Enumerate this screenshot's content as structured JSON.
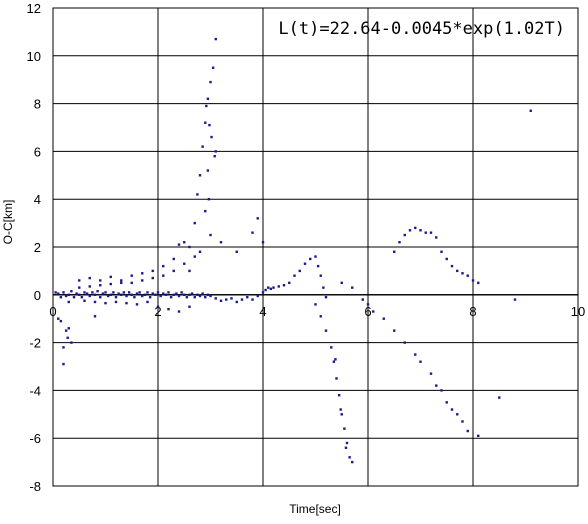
{
  "chart_data": {
    "type": "scatter",
    "title": "",
    "annotation": "L(t)=22.64-0.0045*exp(1.02T)",
    "xlabel": "Time[sec]",
    "ylabel": "O-C[km]",
    "xlim": [
      0,
      10
    ],
    "ylim": [
      -8,
      12
    ],
    "xticks": [
      0,
      2,
      4,
      6,
      8,
      10
    ],
    "yticks": [
      -8,
      -6,
      -4,
      -2,
      0,
      2,
      4,
      6,
      8,
      10,
      12
    ],
    "grid": true,
    "legend": "none",
    "marker_color": "#1a1a8c",
    "series": [
      {
        "points": [
          [
            0.05,
            0.1
          ],
          [
            0.1,
            0.05
          ],
          [
            0.15,
            -0.1
          ],
          [
            0.2,
            0.1
          ],
          [
            0.25,
            -0.05
          ],
          [
            0.3,
            0.0
          ],
          [
            0.35,
            0.15
          ],
          [
            0.4,
            -0.1
          ],
          [
            0.45,
            0.05
          ],
          [
            0.5,
            0.0
          ],
          [
            0.55,
            -0.1
          ],
          [
            0.6,
            0.1
          ],
          [
            0.65,
            0.05
          ],
          [
            0.7,
            -0.05
          ],
          [
            0.75,
            0.1
          ],
          [
            0.8,
            0.0
          ],
          [
            0.85,
            0.15
          ],
          [
            0.9,
            -0.1
          ],
          [
            0.95,
            0.05
          ],
          [
            1.0,
            0.1
          ],
          [
            1.05,
            -0.05
          ],
          [
            1.1,
            0.0
          ],
          [
            1.15,
            0.1
          ],
          [
            1.2,
            -0.1
          ],
          [
            1.25,
            0.05
          ],
          [
            1.3,
            0.0
          ],
          [
            1.35,
            0.1
          ],
          [
            1.4,
            -0.05
          ],
          [
            1.45,
            0.1
          ],
          [
            1.5,
            0.0
          ],
          [
            1.55,
            -0.1
          ],
          [
            1.6,
            0.05
          ],
          [
            1.65,
            0.1
          ],
          [
            1.7,
            -0.05
          ],
          [
            1.75,
            0.0
          ],
          [
            1.8,
            0.1
          ],
          [
            1.85,
            -0.1
          ],
          [
            1.9,
            0.05
          ],
          [
            1.95,
            0.0
          ],
          [
            2.0,
            0.1
          ],
          [
            2.05,
            -0.05
          ],
          [
            2.1,
            0.05
          ],
          [
            2.15,
            0.0
          ],
          [
            2.2,
            0.1
          ],
          [
            2.25,
            -0.1
          ],
          [
            2.3,
            0.0
          ],
          [
            2.35,
            0.05
          ],
          [
            2.4,
            -0.05
          ],
          [
            2.45,
            0.1
          ],
          [
            2.5,
            0.0
          ],
          [
            2.55,
            -0.1
          ],
          [
            2.6,
            0.0
          ],
          [
            2.65,
            0.05
          ],
          [
            2.7,
            -0.1
          ],
          [
            2.75,
            0.0
          ],
          [
            2.8,
            -0.05
          ],
          [
            2.85,
            0.05
          ],
          [
            2.9,
            -0.1
          ],
          [
            2.95,
            0.0
          ],
          [
            3.0,
            -0.05
          ],
          [
            3.1,
            -0.15
          ],
          [
            3.2,
            -0.25
          ],
          [
            3.3,
            -0.2
          ],
          [
            3.4,
            -0.15
          ],
          [
            3.5,
            -0.3
          ],
          [
            3.6,
            -0.2
          ],
          [
            3.7,
            -0.1
          ],
          [
            3.8,
            -0.2
          ],
          [
            3.9,
            -0.05
          ],
          [
            4.0,
            0.1
          ],
          [
            4.05,
            0.2
          ],
          [
            4.1,
            0.3
          ],
          [
            4.15,
            0.25
          ],
          [
            4.2,
            0.3
          ],
          [
            4.3,
            0.35
          ],
          [
            4.4,
            0.4
          ],
          [
            4.5,
            0.5
          ],
          [
            4.6,
            0.8
          ],
          [
            4.7,
            1.0
          ],
          [
            4.8,
            1.3
          ],
          [
            4.9,
            1.5
          ],
          [
            5.0,
            1.6
          ],
          [
            5.05,
            1.2
          ],
          [
            5.1,
            0.8
          ],
          [
            5.15,
            0.3
          ],
          [
            5.2,
            -0.1
          ],
          [
            0.3,
            -0.3
          ],
          [
            0.5,
            0.3
          ],
          [
            0.6,
            -0.25
          ],
          [
            0.7,
            0.35
          ],
          [
            0.8,
            -0.3
          ],
          [
            0.9,
            0.4
          ],
          [
            1.0,
            -0.35
          ],
          [
            1.1,
            0.45
          ],
          [
            1.2,
            -0.3
          ],
          [
            1.3,
            0.5
          ],
          [
            1.4,
            -0.35
          ],
          [
            1.5,
            0.5
          ],
          [
            1.6,
            -0.4
          ],
          [
            1.7,
            0.6
          ],
          [
            1.8,
            -0.3
          ],
          [
            1.9,
            0.7
          ],
          [
            2.0,
            -0.5
          ],
          [
            2.1,
            0.8
          ],
          [
            2.2,
            -0.6
          ],
          [
            2.3,
            1.0
          ],
          [
            2.4,
            -0.7
          ],
          [
            2.5,
            1.3
          ],
          [
            2.6,
            -0.5
          ],
          [
            2.7,
            1.6
          ],
          [
            0.5,
            0.6
          ],
          [
            0.7,
            0.7
          ],
          [
            0.9,
            0.6
          ],
          [
            1.1,
            0.75
          ],
          [
            1.3,
            0.6
          ],
          [
            1.5,
            0.8
          ],
          [
            1.7,
            0.9
          ],
          [
            1.9,
            1.0
          ],
          [
            2.1,
            1.2
          ],
          [
            2.3,
            1.5
          ],
          [
            2.4,
            2.1
          ],
          [
            2.5,
            2.2
          ],
          [
            2.6,
            2.0
          ],
          [
            2.7,
            3.0
          ],
          [
            2.75,
            4.2
          ],
          [
            2.8,
            5.0
          ],
          [
            2.85,
            6.2
          ],
          [
            2.9,
            7.2
          ],
          [
            2.95,
            8.2
          ],
          [
            3.0,
            8.9
          ],
          [
            3.05,
            9.5
          ],
          [
            3.1,
            10.7
          ],
          [
            2.92,
            7.9
          ],
          [
            2.98,
            7.1
          ],
          [
            3.02,
            6.6
          ],
          [
            3.08,
            5.8
          ],
          [
            3.1,
            6.0
          ],
          [
            2.97,
            4.0
          ],
          [
            2.95,
            5.2
          ],
          [
            2.9,
            3.5
          ],
          [
            2.6,
            1.0
          ],
          [
            2.8,
            1.8
          ],
          [
            3.0,
            2.5
          ],
          [
            3.2,
            2.2
          ],
          [
            3.5,
            1.8
          ],
          [
            3.8,
            2.6
          ],
          [
            3.9,
            3.2
          ],
          [
            4.0,
            2.2
          ],
          [
            0.8,
            -0.9
          ],
          [
            0.15,
            -1.1
          ],
          [
            0.2,
            -2.2
          ],
          [
            0.25,
            -1.5
          ],
          [
            0.3,
            -1.4
          ],
          [
            0.35,
            -2.0
          ],
          [
            0.2,
            -2.9
          ],
          [
            0.28,
            -1.8
          ],
          [
            0.1,
            -1.0
          ],
          [
            5.0,
            -0.4
          ],
          [
            5.1,
            -0.9
          ],
          [
            5.2,
            -1.5
          ],
          [
            5.3,
            -2.2
          ],
          [
            5.35,
            -2.8
          ],
          [
            5.4,
            -3.5
          ],
          [
            5.45,
            -4.2
          ],
          [
            5.5,
            -5.0
          ],
          [
            5.55,
            -5.6
          ],
          [
            5.6,
            -6.2
          ],
          [
            5.65,
            -6.8
          ],
          [
            5.7,
            -7.0
          ],
          [
            5.38,
            -2.7
          ],
          [
            5.48,
            -4.8
          ],
          [
            5.58,
            -6.4
          ],
          [
            5.5,
            0.5
          ],
          [
            5.7,
            0.3
          ],
          [
            5.9,
            -0.2
          ],
          [
            6.0,
            -0.4
          ],
          [
            6.1,
            -0.7
          ],
          [
            6.3,
            -1.0
          ],
          [
            6.5,
            -1.5
          ],
          [
            6.7,
            -2.0
          ],
          [
            6.9,
            -2.5
          ],
          [
            7.0,
            -2.8
          ],
          [
            7.2,
            -3.3
          ],
          [
            7.3,
            -3.8
          ],
          [
            7.4,
            -4.0
          ],
          [
            7.5,
            -4.5
          ],
          [
            7.6,
            -4.8
          ],
          [
            7.7,
            -5.0
          ],
          [
            7.8,
            -5.3
          ],
          [
            7.9,
            -5.7
          ],
          [
            8.1,
            -5.9
          ],
          [
            8.5,
            -4.3
          ],
          [
            6.5,
            1.8
          ],
          [
            6.6,
            2.2
          ],
          [
            6.7,
            2.5
          ],
          [
            6.8,
            2.7
          ],
          [
            6.9,
            2.8
          ],
          [
            7.0,
            2.7
          ],
          [
            7.1,
            2.6
          ],
          [
            7.2,
            2.6
          ],
          [
            7.3,
            2.4
          ],
          [
            7.4,
            1.8
          ],
          [
            7.5,
            1.5
          ],
          [
            7.6,
            1.2
          ],
          [
            7.7,
            1.0
          ],
          [
            7.8,
            0.9
          ],
          [
            7.9,
            0.8
          ],
          [
            8.0,
            0.6
          ],
          [
            8.1,
            0.5
          ],
          [
            8.8,
            -0.2
          ],
          [
            9.1,
            7.7
          ]
        ]
      }
    ]
  }
}
